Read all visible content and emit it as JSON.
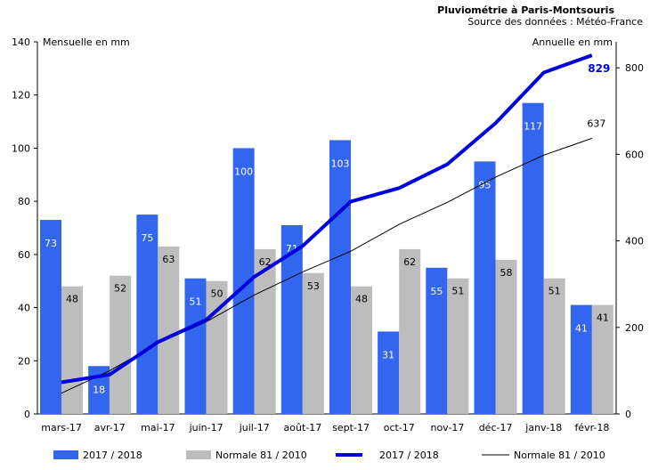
{
  "colors": {
    "bar2017": "#3366ee",
    "barNormal": "#bdbdbd",
    "line2017": "#0000dd",
    "lineNormal": "#000000"
  },
  "chart_data": {
    "type": "bar",
    "title": "Pluviométrie à Paris-Montsouris",
    "subtitle": "Source des données : Météo-France",
    "ylabel_left": "Mensuelle en mm",
    "ylabel_right": "Annuelle en mm",
    "categories": [
      "mars-17",
      "avr-17",
      "mai-17",
      "juin-17",
      "juil-17",
      "août-17",
      "sept-17",
      "oct-17",
      "nov-17",
      "déc-17",
      "janv-18",
      "févr-18"
    ],
    "ylim_left": [
      0,
      140
    ],
    "yticks_left": [
      0,
      20,
      40,
      60,
      80,
      100,
      120,
      140
    ],
    "ylim_right": [
      0,
      860
    ],
    "yticks_right": [
      0,
      200,
      400,
      600,
      800
    ],
    "series": [
      {
        "name": "2017 / 2018",
        "kind": "bar",
        "axis": "left",
        "values": [
          73,
          18,
          75,
          51,
          100,
          71,
          103,
          31,
          55,
          95,
          117,
          41
        ]
      },
      {
        "name": "Normale 81 / 2010",
        "kind": "bar",
        "axis": "left",
        "values": [
          48,
          52,
          63,
          50,
          62,
          53,
          48,
          62,
          51,
          58,
          51,
          41
        ]
      },
      {
        "name": "2017 / 2018",
        "kind": "line",
        "axis": "right",
        "values": [
          73,
          91,
          166,
          217,
          317,
          388,
          491,
          522,
          577,
          672,
          789,
          829
        ]
      },
      {
        "name": "Normale 81 / 2010",
        "kind": "line",
        "axis": "right",
        "values": [
          48,
          100,
          163,
          213,
          275,
          328,
          376,
          438,
          489,
          547,
          598,
          637
        ]
      }
    ],
    "end_labels": {
      "line2017": "829",
      "lineNormal": "637"
    },
    "legend_position": "bottom"
  }
}
